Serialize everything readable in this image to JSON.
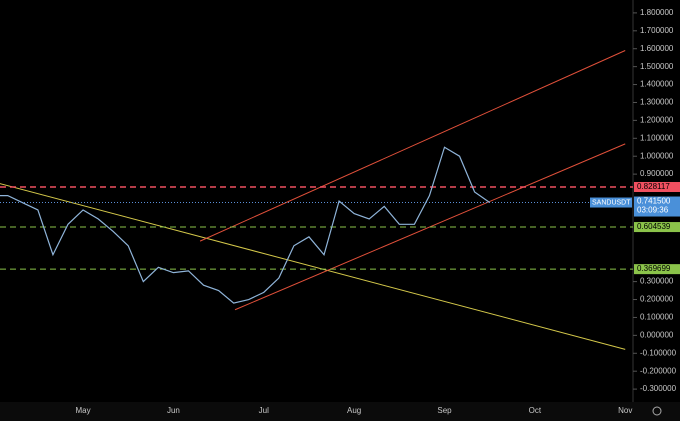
{
  "chart_data": {
    "type": "line",
    "symbol": "SANDUSDT",
    "categories": [
      null,
      null,
      null,
      null,
      null,
      null,
      "May",
      null,
      null,
      null,
      null,
      null,
      "Jun",
      null,
      null,
      null,
      null,
      null,
      "Jul",
      null,
      null,
      null,
      null,
      null,
      "Aug",
      null,
      null,
      null,
      null,
      null,
      "Sep",
      null,
      null,
      null,
      null,
      null,
      "Oct",
      null,
      null,
      null,
      null,
      null,
      "Nov"
    ],
    "series": [
      {
        "name": "SANDUSDT",
        "color": "#8fb4d9",
        "values": [
          0.78,
          0.78,
          0.74,
          0.7,
          0.45,
          0.62,
          0.7,
          0.65,
          0.58,
          0.5,
          0.3,
          0.38,
          0.35,
          0.36,
          0.28,
          0.25,
          0.18,
          0.2,
          0.24,
          0.32,
          0.5,
          0.55,
          0.45,
          0.75,
          0.68,
          0.65,
          0.72,
          0.62,
          0.62,
          0.78,
          1.05,
          1.0,
          0.8,
          0.7415,
          null,
          null,
          null,
          null,
          null,
          null,
          null,
          null,
          null
        ]
      }
    ],
    "ylim": [
      -0.372,
      1.872
    ],
    "yticks": [
      {
        "value": 1.8,
        "label": "1.800000"
      },
      {
        "value": 1.7,
        "label": "1.700000"
      },
      {
        "value": 1.6,
        "label": "1.600000"
      },
      {
        "value": 1.5,
        "label": "1.500000"
      },
      {
        "value": 1.4,
        "label": "1.400000"
      },
      {
        "value": 1.3,
        "label": "1.300000"
      },
      {
        "value": 1.2,
        "label": "1.200000"
      },
      {
        "value": 1.1,
        "label": "1.100000"
      },
      {
        "value": 1.0,
        "label": "1.000000"
      },
      {
        "value": 0.9,
        "label": "0.900000"
      },
      {
        "value": 0.3,
        "label": "0.300000"
      },
      {
        "value": 0.2,
        "label": "0.200000"
      },
      {
        "value": 0.1,
        "label": "0.100000"
      },
      {
        "value": 0,
        "label": "0.000000"
      },
      {
        "value": -0.1,
        "label": "-0.100000"
      },
      {
        "value": -0.2,
        "label": "-0.200000"
      },
      {
        "value": -0.3,
        "label": "-0.300000"
      }
    ],
    "levels": [
      {
        "value": 0.828117,
        "label": "0.828117",
        "color": "#f05060"
      },
      {
        "value": 0.604539,
        "label": "0.604539",
        "color": "#8bc34a"
      },
      {
        "value": 0.369699,
        "label": "0.369699",
        "color": "#8bc34a"
      }
    ],
    "last_price": {
      "value": 0.7415,
      "label": "0.741500",
      "countdown": "03:09:36"
    },
    "trendlines": [
      {
        "color": "#d4c84a",
        "from": [
          0,
          0.858
        ],
        "to": [
          42,
          -0.078
        ]
      },
      {
        "color": "#e0503a",
        "from": [
          13.77,
          0.526
        ],
        "to": [
          42,
          1.59
        ]
      },
      {
        "color": "#e0503a",
        "from": [
          16.09,
          0.143
        ],
        "to": [
          42,
          1.069
        ]
      }
    ]
  }
}
